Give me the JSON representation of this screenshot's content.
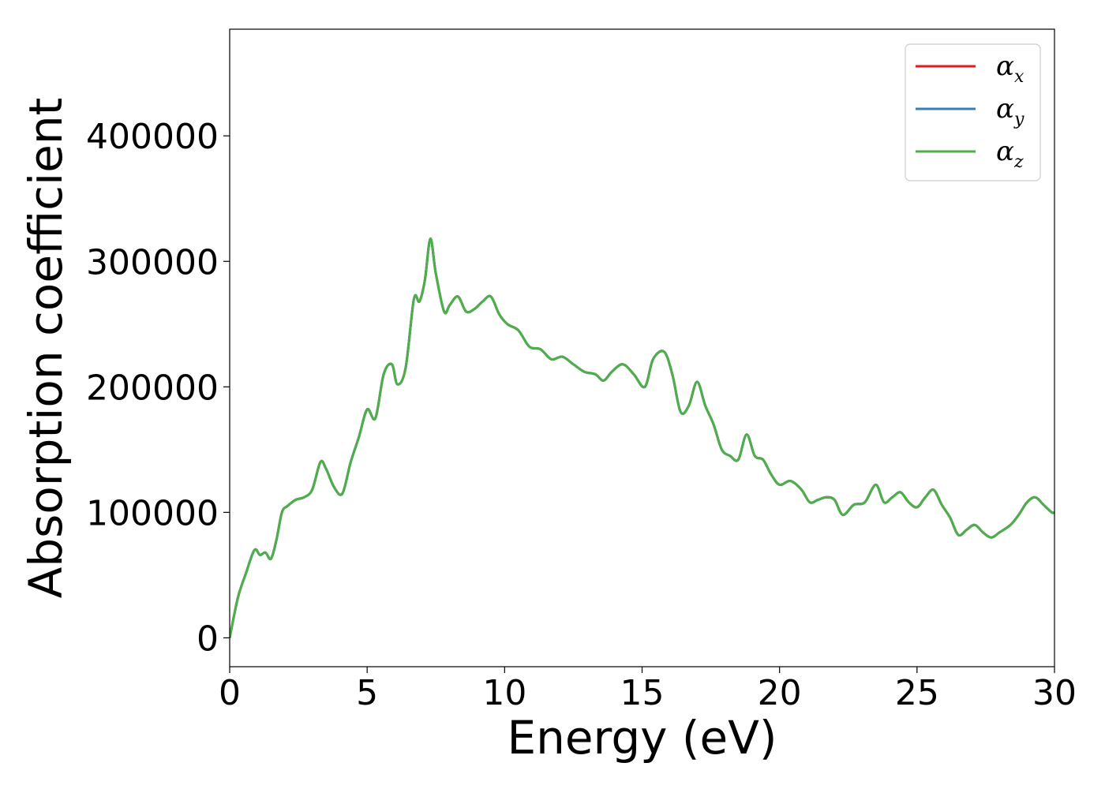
{
  "chart_data": {
    "type": "line",
    "xlabel": "Energy (eV)",
    "ylabel": "Absorption coefficient",
    "xlim": [
      0,
      30
    ],
    "ylim": [
      -23000,
      485000
    ],
    "xticks": [
      0,
      5,
      10,
      15,
      20,
      25,
      30
    ],
    "xtick_labels": [
      "0",
      "5",
      "10",
      "15",
      "20",
      "25",
      "30"
    ],
    "yticks": [
      0,
      100000,
      200000,
      300000,
      400000
    ],
    "ytick_labels": [
      "0",
      "100000",
      "200000",
      "300000",
      "400000"
    ],
    "grid": false,
    "legend": {
      "position": "top-right"
    },
    "series": [
      {
        "name": "α",
        "subscript": "x",
        "color": "#e41a1c",
        "x": [
          0,
          0.3,
          0.6,
          0.9,
          1.1,
          1.3,
          1.5,
          1.7,
          1.9,
          2.1,
          2.4,
          2.7,
          3.0,
          3.3,
          3.5,
          3.8,
          4.1,
          4.4,
          4.7,
          5.0,
          5.3,
          5.6,
          5.9,
          6.1,
          6.4,
          6.7,
          6.9,
          7.1,
          7.3,
          7.5,
          7.8,
          8.0,
          8.3,
          8.6,
          8.9,
          9.2,
          9.5,
          9.8,
          10.1,
          10.5,
          10.9,
          11.3,
          11.7,
          12.1,
          12.5,
          12.9,
          13.3,
          13.6,
          13.9,
          14.3,
          14.7,
          15.1,
          15.4,
          15.8,
          16.1,
          16.4,
          16.7,
          17.0,
          17.3,
          17.6,
          17.9,
          18.2,
          18.5,
          18.8,
          19.1,
          19.4,
          19.7,
          20.0,
          20.4,
          20.8,
          21.1,
          21.4,
          21.7,
          22.0,
          22.3,
          22.7,
          23.1,
          23.5,
          23.8,
          24.1,
          24.4,
          24.7,
          25.0,
          25.3,
          25.6,
          25.9,
          26.2,
          26.5,
          26.8,
          27.1,
          27.4,
          27.7,
          28.0,
          28.4,
          28.7,
          29.0,
          29.3,
          29.6,
          29.9,
          30.0
        ],
        "values": [
          0,
          32000,
          52000,
          70000,
          66000,
          68000,
          63000,
          78000,
          100000,
          105000,
          110000,
          112000,
          118000,
          140000,
          135000,
          120000,
          115000,
          140000,
          160000,
          182000,
          175000,
          210000,
          218000,
          202000,
          215000,
          270000,
          268000,
          285000,
          318000,
          290000,
          260000,
          265000,
          272000,
          260000,
          262000,
          268000,
          272000,
          258000,
          250000,
          245000,
          232000,
          230000,
          222000,
          224000,
          218000,
          212000,
          210000,
          205000,
          212000,
          218000,
          210000,
          200000,
          222000,
          228000,
          210000,
          180000,
          185000,
          204000,
          185000,
          170000,
          150000,
          145000,
          142000,
          162000,
          145000,
          142000,
          130000,
          122000,
          125000,
          118000,
          108000,
          110000,
          112000,
          110000,
          98000,
          106000,
          108000,
          122000,
          108000,
          112000,
          116000,
          108000,
          104000,
          112000,
          118000,
          106000,
          96000,
          82000,
          86000,
          90000,
          84000,
          80000,
          84000,
          90000,
          98000,
          108000,
          112000,
          106000,
          100000,
          100000
        ]
      },
      {
        "name": "α",
        "subscript": "y",
        "color": "#377eb8",
        "x": [
          0,
          0.3,
          0.6,
          0.9,
          1.1,
          1.3,
          1.5,
          1.7,
          1.9,
          2.1,
          2.4,
          2.7,
          3.0,
          3.3,
          3.5,
          3.8,
          4.1,
          4.4,
          4.7,
          5.0,
          5.3,
          5.6,
          5.9,
          6.1,
          6.4,
          6.7,
          6.9,
          7.1,
          7.3,
          7.5,
          7.8,
          8.0,
          8.3,
          8.6,
          8.9,
          9.2,
          9.5,
          9.8,
          10.1,
          10.5,
          10.9,
          11.3,
          11.7,
          12.1,
          12.5,
          12.9,
          13.3,
          13.6,
          13.9,
          14.3,
          14.7,
          15.1,
          15.4,
          15.8,
          16.1,
          16.4,
          16.7,
          17.0,
          17.3,
          17.6,
          17.9,
          18.2,
          18.5,
          18.8,
          19.1,
          19.4,
          19.7,
          20.0,
          20.4,
          20.8,
          21.1,
          21.4,
          21.7,
          22.0,
          22.3,
          22.7,
          23.1,
          23.5,
          23.8,
          24.1,
          24.4,
          24.7,
          25.0,
          25.3,
          25.6,
          25.9,
          26.2,
          26.5,
          26.8,
          27.1,
          27.4,
          27.7,
          28.0,
          28.4,
          28.7,
          29.0,
          29.3,
          29.6,
          29.9,
          30.0
        ],
        "values": [
          0,
          32000,
          52000,
          70000,
          66000,
          68000,
          63000,
          78000,
          100000,
          105000,
          110000,
          112000,
          118000,
          140000,
          135000,
          120000,
          115000,
          140000,
          160000,
          182000,
          175000,
          210000,
          218000,
          202000,
          215000,
          270000,
          268000,
          285000,
          318000,
          290000,
          260000,
          265000,
          272000,
          260000,
          262000,
          268000,
          272000,
          258000,
          250000,
          245000,
          232000,
          230000,
          222000,
          224000,
          218000,
          212000,
          210000,
          205000,
          212000,
          218000,
          210000,
          200000,
          222000,
          228000,
          210000,
          180000,
          185000,
          204000,
          185000,
          170000,
          150000,
          145000,
          142000,
          162000,
          145000,
          142000,
          130000,
          122000,
          125000,
          118000,
          108000,
          110000,
          112000,
          110000,
          98000,
          106000,
          108000,
          122000,
          108000,
          112000,
          116000,
          108000,
          104000,
          112000,
          118000,
          106000,
          96000,
          82000,
          86000,
          90000,
          84000,
          80000,
          84000,
          90000,
          98000,
          108000,
          112000,
          106000,
          100000,
          100000
        ]
      },
      {
        "name": "α",
        "subscript": "z",
        "color": "#4daf4a",
        "x": [
          0,
          0.3,
          0.6,
          0.9,
          1.1,
          1.3,
          1.5,
          1.7,
          1.9,
          2.1,
          2.4,
          2.7,
          3.0,
          3.3,
          3.5,
          3.8,
          4.1,
          4.4,
          4.7,
          5.0,
          5.3,
          5.6,
          5.9,
          6.1,
          6.4,
          6.7,
          6.9,
          7.1,
          7.3,
          7.5,
          7.8,
          8.0,
          8.3,
          8.6,
          8.9,
          9.2,
          9.5,
          9.8,
          10.1,
          10.5,
          10.9,
          11.3,
          11.7,
          12.1,
          12.5,
          12.9,
          13.3,
          13.6,
          13.9,
          14.3,
          14.7,
          15.1,
          15.4,
          15.8,
          16.1,
          16.4,
          16.7,
          17.0,
          17.3,
          17.6,
          17.9,
          18.2,
          18.5,
          18.8,
          19.1,
          19.4,
          19.7,
          20.0,
          20.4,
          20.8,
          21.1,
          21.4,
          21.7,
          22.0,
          22.3,
          22.7,
          23.1,
          23.5,
          23.8,
          24.1,
          24.4,
          24.7,
          25.0,
          25.3,
          25.6,
          25.9,
          26.2,
          26.5,
          26.8,
          27.1,
          27.4,
          27.7,
          28.0,
          28.4,
          28.7,
          29.0,
          29.3,
          29.6,
          29.9,
          30.0
        ],
        "values": [
          0,
          32000,
          52000,
          70000,
          66000,
          68000,
          63000,
          78000,
          100000,
          105000,
          110000,
          112000,
          118000,
          140000,
          135000,
          120000,
          115000,
          140000,
          160000,
          182000,
          175000,
          210000,
          218000,
          202000,
          215000,
          270000,
          268000,
          285000,
          318000,
          290000,
          260000,
          265000,
          272000,
          260000,
          262000,
          268000,
          272000,
          258000,
          250000,
          245000,
          232000,
          230000,
          222000,
          224000,
          218000,
          212000,
          210000,
          205000,
          212000,
          218000,
          210000,
          200000,
          222000,
          228000,
          210000,
          180000,
          185000,
          204000,
          185000,
          170000,
          150000,
          145000,
          142000,
          162000,
          145000,
          142000,
          130000,
          122000,
          125000,
          118000,
          108000,
          110000,
          112000,
          110000,
          98000,
          106000,
          108000,
          122000,
          108000,
          112000,
          116000,
          108000,
          104000,
          112000,
          118000,
          106000,
          96000,
          82000,
          86000,
          90000,
          84000,
          80000,
          84000,
          90000,
          98000,
          108000,
          112000,
          106000,
          100000,
          100000
        ]
      }
    ]
  }
}
